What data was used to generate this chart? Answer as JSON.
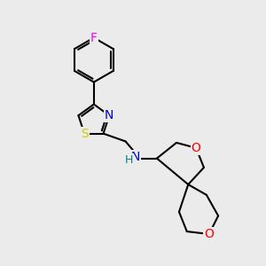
{
  "background_color": "#ebebeb",
  "atom_colors": {
    "F": "#ff00ff",
    "N": "#0000cd",
    "S": "#cccc00",
    "O": "#ff0000",
    "C": "#000000",
    "H": "#008080"
  },
  "bond_color": "#000000",
  "bond_width": 1.5,
  "font_size_atoms": 10
}
